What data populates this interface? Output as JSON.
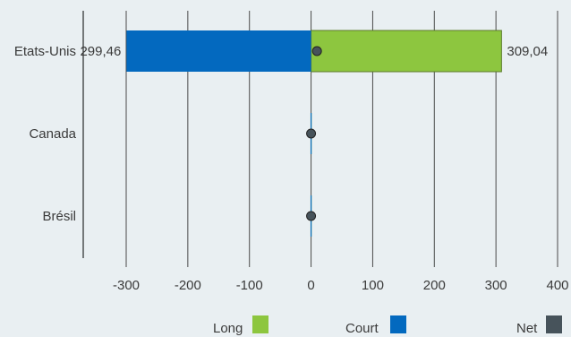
{
  "chart_data": {
    "type": "bar",
    "orientation": "horizontal",
    "stacked": "diverging",
    "categories": [
      "Etats-Unis",
      "Canada",
      "Brésil"
    ],
    "series": [
      {
        "name": "Long",
        "values": [
          309.04,
          0,
          0
        ],
        "color": "#8dc63f"
      },
      {
        "name": "Court",
        "values": [
          -299.46,
          0,
          0
        ],
        "color": "#0369bf"
      },
      {
        "name": "Net",
        "values": [
          9.58,
          0,
          0
        ],
        "color": "#47535b",
        "marker": "circle"
      }
    ],
    "data_labels": [
      {
        "category": "Etats-Unis",
        "series": "Court",
        "text": "299,46"
      },
      {
        "category": "Etats-Unis",
        "series": "Long",
        "text": "309,04"
      }
    ],
    "xticks": [
      "-300",
      "-200",
      "-100",
      "0",
      "100",
      "200",
      "300",
      "400"
    ],
    "xlim": [
      -300,
      400
    ],
    "grid": true,
    "legend_position": "bottom",
    "title": "",
    "xlabel": "",
    "ylabel": ""
  }
}
